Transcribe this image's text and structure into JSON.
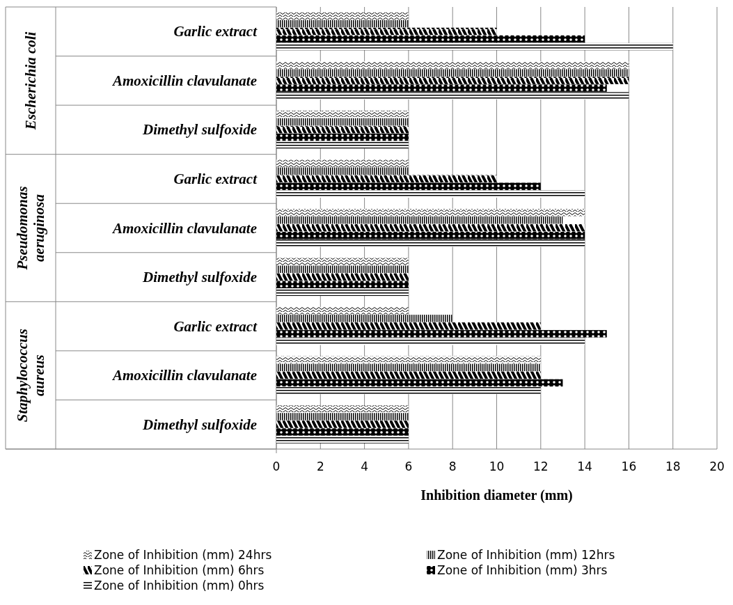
{
  "chart_data": {
    "type": "bar",
    "orientation": "horizontal",
    "xlabel": "Inhibition diameter (mm)",
    "categories": [
      "Garlic extract",
      "Amoxicillin clavulanate",
      "Dimethyl sulfoxide",
      "Garlic extract",
      "Amoxicillin clavulanate",
      "Dimethyl sulfoxide",
      "Garlic extract",
      "Amoxicillin clavulanate",
      "Dimethyl sulfoxide"
    ],
    "annotations": [
      "Escherichia coli",
      "Pseudomonas aeruginosa",
      "Staphylococcus aureus"
    ],
    "series": [
      {
        "name": "Zone of Inhibition (mm) 24hrs",
        "color": "#000000",
        "values": [
          6,
          16,
          6,
          6,
          14,
          6,
          6,
          12,
          6
        ]
      },
      {
        "name": "Zone of Inhibition (mm) 12hrs",
        "color": "#000000",
        "values": [
          6,
          16,
          6,
          6,
          13,
          6,
          8,
          12,
          6
        ]
      },
      {
        "name": "Zone of Inhibition (mm) 6hrs",
        "color": "#000000",
        "values": [
          10,
          16,
          6,
          10,
          14,
          6,
          12,
          12,
          6
        ]
      },
      {
        "name": "Zone of Inhibition (mm) 3hrs",
        "color": "#000000",
        "values": [
          14,
          15,
          6,
          12,
          14,
          6,
          15,
          13,
          6
        ]
      },
      {
        "name": "Zone of Inhibition (mm) 0hrs",
        "color": "#000000",
        "values": [
          18,
          16,
          6,
          14,
          14,
          6,
          14,
          12,
          6
        ]
      }
    ],
    "xlim": [
      0,
      20
    ],
    "xticks": [
      0,
      2,
      4,
      6,
      8,
      10,
      12,
      14,
      16,
      18,
      20
    ],
    "grid": "x",
    "legend": "bottom"
  }
}
